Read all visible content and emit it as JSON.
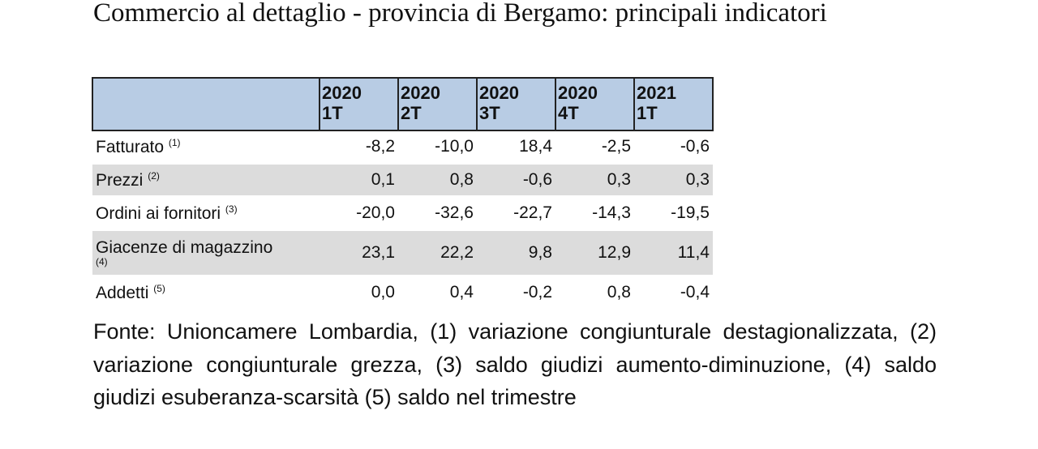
{
  "title": "Commercio al dettaglio - provincia di Bergamo: principali indicatori",
  "table": {
    "headers": [
      {
        "year": "2020",
        "quarter": "1T"
      },
      {
        "year": "2020",
        "quarter": "2T"
      },
      {
        "year": "2020",
        "quarter": "3T"
      },
      {
        "year": "2020",
        "quarter": "4T"
      },
      {
        "year": "2021",
        "quarter": "1T"
      }
    ],
    "rows": [
      {
        "label": "Fatturato",
        "note": "(1)",
        "values": [
          "-8,2",
          "-10,0",
          "18,4",
          "-2,5",
          "-0,6"
        ]
      },
      {
        "label": "Prezzi",
        "note": "(2)",
        "values": [
          "0,1",
          "0,8",
          "-0,6",
          "0,3",
          "0,3"
        ]
      },
      {
        "label": "Ordini ai fornitori",
        "note": "(3)",
        "values": [
          "-20,0",
          "-32,6",
          "-22,7",
          "-14,3",
          "-19,5"
        ]
      },
      {
        "label": "Giacenze di magazzino",
        "note": "(4)",
        "values": [
          "23,1",
          "22,2",
          "9,8",
          "12,9",
          "11,4"
        ]
      },
      {
        "label": "Addetti",
        "note": "(5)",
        "values": [
          "0,0",
          "0,4",
          "-0,2",
          "0,8",
          "-0,4"
        ]
      }
    ]
  },
  "footnote": "Fonte: Unioncamere Lombardia, (1) variazione congiunturale destagionalizzata, (2) variazione congiunturale grezza, (3) saldo giudizi aumento-diminuzione, (4) saldo giudizi esuberanza-scarsità (5) saldo nel trimestre",
  "colors": {
    "header_bg": "#b8cce4",
    "stripe_bg": "#dcdcdc"
  }
}
